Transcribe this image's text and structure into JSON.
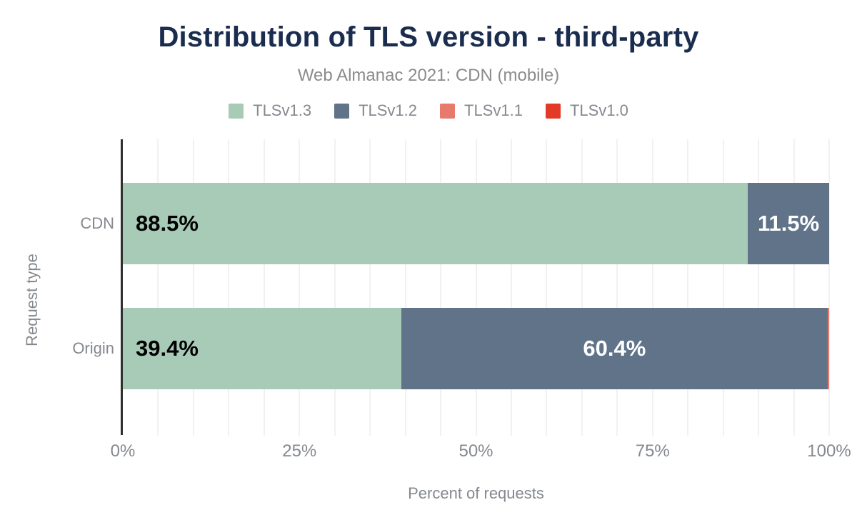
{
  "chart_data": {
    "type": "bar",
    "orientation": "horizontal-stacked",
    "title": "Distribution of TLS version - third-party",
    "subtitle": "Web Almanac 2021: CDN (mobile)",
    "categories": [
      "CDN",
      "Origin"
    ],
    "series": [
      {
        "name": "TLSv1.3",
        "color": "#a8cbb8",
        "values": [
          88.5,
          39.4
        ],
        "labels": [
          "88.5%",
          "39.4%"
        ],
        "label_color": "#000000",
        "label_align": "left"
      },
      {
        "name": "TLSv1.2",
        "color": "#607389",
        "values": [
          11.5,
          60.4
        ],
        "labels": [
          "11.5%",
          "60.4%"
        ],
        "label_color": "#ffffff",
        "label_align": "center"
      },
      {
        "name": "TLSv1.1",
        "color": "#e8796d",
        "values": [
          0,
          0.2
        ],
        "labels": [
          "",
          ""
        ],
        "label_color": "#ffffff",
        "label_align": "center"
      },
      {
        "name": "TLSv1.0",
        "color": "#e33a28",
        "values": [
          0,
          0
        ],
        "labels": [
          "",
          ""
        ],
        "label_color": "#ffffff",
        "label_align": "center"
      }
    ],
    "xlabel": "Percent of requests",
    "ylabel": "Request type",
    "x_ticks": [
      "0%",
      "25%",
      "50%",
      "75%",
      "100%"
    ],
    "xlim": [
      0,
      100
    ],
    "grid": {
      "vertical_step_percent": 5,
      "color": "#f1f1f1"
    },
    "legend_position": "top",
    "colors": {
      "title": "#1b2d4f",
      "subtitle": "#8b8b8b",
      "axis_text": "#85898e",
      "axis_line": "#2e2e2e",
      "value_label_on_green": "#000000",
      "value_label_on_blue": "#ffffff"
    }
  }
}
